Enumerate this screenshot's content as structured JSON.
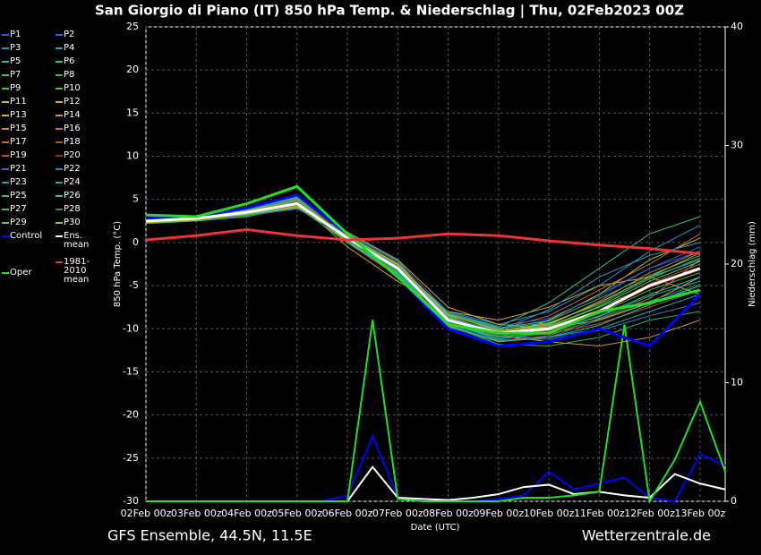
{
  "chart_data": {
    "type": "line",
    "title": "San Giorgio di Piano  (IT)  850 hPa Temp. & Niederschlag | Thu, 02Feb2023 00Z",
    "ylabel": "850 hPa Temp. (°C)",
    "y2label": "Niederschlag (mm)",
    "xlabel": "Date (UTC)",
    "footer_left": "GFS Ensemble, 44.5N, 11.5E",
    "footer_right": "Wetterzentrale.de",
    "grid": true,
    "xlim": [
      0,
      11.5
    ],
    "xticks": [
      {
        "value": 0,
        "label": "02Feb 00z"
      },
      {
        "value": 1,
        "label": "03Feb 00z"
      },
      {
        "value": 2,
        "label": "04Feb 00z"
      },
      {
        "value": 3,
        "label": "05Feb 00z"
      },
      {
        "value": 4,
        "label": "06Feb 00z"
      },
      {
        "value": 5,
        "label": "07Feb 00z"
      },
      {
        "value": 6,
        "label": "08Feb 00z"
      },
      {
        "value": 7,
        "label": "09Feb 00z"
      },
      {
        "value": 8,
        "label": "10Feb 00z"
      },
      {
        "value": 9,
        "label": "11Feb 00z"
      },
      {
        "value": 10,
        "label": "12Feb 00z"
      },
      {
        "value": 11,
        "label": "13Feb 00z"
      }
    ],
    "ylim": [
      -30,
      25
    ],
    "yticks": [
      -30,
      -25,
      -20,
      -15,
      -10,
      -5,
      0,
      5,
      10,
      15,
      20,
      25
    ],
    "y2lim": [
      0,
      40
    ],
    "y2ticks": [
      0,
      10,
      20,
      30,
      40
    ],
    "x": [
      0,
      1,
      2,
      3,
      4,
      5,
      6,
      7,
      8,
      9,
      10,
      11
    ],
    "series": [
      {
        "name": "P1",
        "color": "#3355ff",
        "values": [
          2.4,
          2.7,
          3.3,
          4.2,
          0.8,
          -2.5,
          -8.5,
          -10,
          -9,
          -6,
          -3,
          -1
        ]
      },
      {
        "name": "P2",
        "color": "#2266ee",
        "values": [
          2.6,
          2.9,
          3.6,
          4.8,
          0.2,
          -3.5,
          -9.5,
          -11,
          -11,
          -9,
          -7,
          -5
        ]
      },
      {
        "name": "P3",
        "color": "#1199dd",
        "values": [
          2.3,
          2.6,
          3.4,
          4.4,
          0.6,
          -2.8,
          -8,
          -9.5,
          -8,
          -5,
          -1,
          2
        ]
      },
      {
        "name": "P4",
        "color": "#11aacc",
        "values": [
          2.7,
          3.0,
          3.8,
          5.0,
          0.4,
          -3.2,
          -9.8,
          -11.5,
          -11,
          -10,
          -8,
          -6
        ]
      },
      {
        "name": "P5",
        "color": "#11bbbb",
        "values": [
          2.5,
          2.8,
          3.1,
          4.0,
          1.0,
          -2.2,
          -8.8,
          -10.2,
          -9.5,
          -7,
          -4,
          -2
        ]
      },
      {
        "name": "P6",
        "color": "#11cc99",
        "values": [
          2.4,
          2.9,
          3.7,
          4.6,
          0.1,
          -3.8,
          -9.3,
          -11.2,
          -10.5,
          -8.5,
          -6,
          -4
        ]
      },
      {
        "name": "P7",
        "color": "#22cc77",
        "values": [
          2.6,
          2.7,
          3.5,
          4.3,
          0.7,
          -2.6,
          -8.2,
          -9.8,
          -7,
          -3,
          1,
          3
        ]
      },
      {
        "name": "P8",
        "color": "#22bb55",
        "values": [
          2.5,
          2.8,
          3.2,
          4.9,
          0.3,
          -3.4,
          -9.6,
          -11.8,
          -12,
          -11,
          -9,
          -8
        ]
      },
      {
        "name": "P9",
        "color": "#33cc44",
        "values": [
          2.8,
          3.1,
          3.9,
          5.2,
          0.9,
          -2.9,
          -8.6,
          -10.4,
          -9.8,
          -7.5,
          -5,
          -3
        ]
      },
      {
        "name": "P10",
        "color": "#44cc22",
        "values": [
          2.2,
          2.5,
          3.0,
          4.1,
          0.5,
          -3.0,
          -9.1,
          -10.6,
          -10.2,
          -8.2,
          -5.5,
          -3.5
        ]
      },
      {
        "name": "P11",
        "color": "#aacc22",
        "values": [
          2.6,
          2.9,
          3.4,
          4.5,
          0.2,
          -3.6,
          -9.4,
          -11.0,
          -9.0,
          -6.0,
          -2.0,
          0.5
        ]
      },
      {
        "name": "P12",
        "color": "#ccaa22",
        "values": [
          2.5,
          2.7,
          3.6,
          4.7,
          -0.5,
          -4.5,
          -8.0,
          -9.0,
          -7.5,
          -5.0,
          -4.0,
          -6.0
        ]
      },
      {
        "name": "P13",
        "color": "#ddaa33",
        "values": [
          2.4,
          2.8,
          3.3,
          4.0,
          1.2,
          -2.0,
          -7.5,
          -9.5,
          -10.0,
          -9.0,
          -7.0,
          -4.0
        ]
      },
      {
        "name": "P14",
        "color": "#cc9933",
        "values": [
          2.7,
          3.0,
          3.5,
          4.4,
          0.4,
          -3.1,
          -9.0,
          -10.8,
          -11.5,
          -12.0,
          -11.0,
          -9.0
        ]
      },
      {
        "name": "P15",
        "color": "#cc8844",
        "values": [
          2.3,
          2.6,
          3.8,
          5.1,
          0.6,
          -2.7,
          -8.7,
          -10.3,
          -9.6,
          -6.8,
          -3.5,
          -1.0
        ]
      },
      {
        "name": "P16",
        "color": "#bb7733",
        "values": [
          2.6,
          2.9,
          3.2,
          4.2,
          0.0,
          -3.9,
          -9.7,
          -11.4,
          -10.8,
          -8.8,
          -6.5,
          -2.0
        ]
      },
      {
        "name": "P17",
        "color": "#cc6633",
        "values": [
          2.5,
          2.8,
          3.5,
          4.6,
          0.8,
          -2.4,
          -8.4,
          -10.1,
          -8.5,
          -5.5,
          -2.5,
          1.0
        ]
      },
      {
        "name": "P18",
        "color": "#bb5522",
        "values": [
          2.4,
          2.7,
          3.7,
          4.8,
          0.3,
          -3.3,
          -9.2,
          -10.9,
          -10.6,
          -9.4,
          -7.5,
          -5.5
        ]
      },
      {
        "name": "P19",
        "color": "#cc4433",
        "values": [
          2.8,
          3.0,
          3.4,
          4.3,
          0.7,
          -2.8,
          -8.9,
          -10.5,
          -9.9,
          -7.8,
          -4.8,
          -2.5
        ]
      },
      {
        "name": "P20",
        "color": "#aa2222",
        "values": [
          2.5,
          2.9,
          3.6,
          4.5,
          0.5,
          -3.0,
          -9.0,
          -10.7,
          -10.3,
          -8.0,
          -5.2,
          -3.2
        ]
      },
      {
        "name": "P21",
        "color": "#3366cc",
        "values": [
          2.3,
          2.6,
          3.1,
          3.9,
          1.1,
          -2.1,
          -8.1,
          -9.7,
          -8.8,
          -6.2,
          -3.0,
          -0.5
        ]
      },
      {
        "name": "P22",
        "color": "#2288cc",
        "values": [
          2.7,
          3.1,
          3.9,
          5.0,
          0.2,
          -3.7,
          -9.5,
          -11.3,
          -11.2,
          -10.2,
          -8.5,
          -7.0
        ]
      },
      {
        "name": "P23",
        "color": "#3399bb",
        "values": [
          2.6,
          2.8,
          3.3,
          4.4,
          0.6,
          -2.9,
          -8.8,
          -10.2,
          -7.8,
          -4.0,
          -1.5,
          0.0
        ]
      },
      {
        "name": "P24",
        "color": "#22aaaa",
        "values": [
          2.4,
          2.7,
          3.5,
          4.7,
          0.4,
          -3.2,
          -9.3,
          -11.0,
          -10.4,
          -8.6,
          -6.2,
          -4.5
        ]
      },
      {
        "name": "P25",
        "color": "#22bb99",
        "values": [
          2.5,
          2.9,
          3.8,
          5.3,
          0.9,
          -2.6,
          -8.5,
          -10.0,
          -9.3,
          -7.2,
          -4.2,
          -1.8
        ]
      },
      {
        "name": "P26",
        "color": "#22cc88",
        "values": [
          2.6,
          2.8,
          3.2,
          4.1,
          0.1,
          -3.5,
          -9.6,
          -11.5,
          -11.0,
          -9.6,
          -7.2,
          -5.0
        ]
      },
      {
        "name": "P27",
        "color": "#33bb66",
        "values": [
          2.4,
          2.7,
          3.6,
          4.6,
          0.7,
          -2.7,
          -8.3,
          -9.9,
          -9.1,
          -6.5,
          -3.8,
          -1.5
        ]
      },
      {
        "name": "P28",
        "color": "#229944",
        "values": [
          2.7,
          3.0,
          3.4,
          4.5,
          0.3,
          -3.4,
          -9.1,
          -10.8,
          -10.6,
          -8.9,
          -6.8,
          -4.8
        ]
      },
      {
        "name": "P29",
        "color": "#66cc33",
        "values": [
          2.5,
          2.8,
          3.7,
          4.9,
          0.5,
          -3.0,
          -8.9,
          -10.4,
          -9.7,
          -7.4,
          -4.5,
          -2.2
        ]
      },
      {
        "name": "P30",
        "color": "#bbbb22",
        "values": [
          2.3,
          2.6,
          3.3,
          4.2,
          0.8,
          -2.5,
          -8.4,
          -10.2,
          -9.4,
          -7.0,
          -4.0,
          -1.2
        ]
      },
      {
        "name": "Control",
        "color": "#0000ff",
        "width": 3,
        "values": [
          2.8,
          3,
          4,
          5.5,
          1,
          -4,
          -10,
          -12,
          -11.5,
          -10,
          -12,
          -6
        ]
      },
      {
        "name": "Ens. mean",
        "color": "#ffffff",
        "width": 3,
        "values": [
          2.5,
          2.8,
          3.5,
          4.5,
          0.5,
          -3,
          -9,
          -10.5,
          -10,
          -8,
          -5,
          -3
        ]
      },
      {
        "name": "Oper",
        "color": "#22dd22",
        "width": 3,
        "values": [
          3.2,
          3,
          4.5,
          6.5,
          1,
          -4,
          -9.5,
          -10.5,
          -10.5,
          -8,
          -7,
          -5.5
        ]
      },
      {
        "name": "1981-2010 mean",
        "color": "#ee3333",
        "width": 3,
        "values": [
          0.3,
          0.8,
          1.5,
          0.8,
          0.3,
          0.5,
          1,
          0.8,
          0.2,
          -0.3,
          -0.7,
          -1.3
        ]
      }
    ],
    "precip": {
      "x": [
        0,
        0.5,
        1,
        1.5,
        2,
        2.5,
        3,
        3.5,
        4,
        4.5,
        5,
        5.5,
        6,
        6.5,
        7,
        7.5,
        8,
        8.5,
        9,
        9.5,
        10,
        10.5,
        11,
        11.5
      ],
      "series": [
        {
          "color": "#0000ff",
          "values": [
            0,
            0,
            0,
            0,
            0,
            0,
            0,
            0,
            0.5,
            5.5,
            0.3,
            0,
            0,
            0,
            0.2,
            0.5,
            2.5,
            1,
            1.5,
            2,
            0.3,
            0,
            4,
            3
          ]
        },
        {
          "color": "#ffffff",
          "values": [
            0,
            0,
            0,
            0,
            0,
            0,
            0,
            0,
            0,
            2.9,
            0.3,
            0.2,
            0.1,
            0.3,
            0.6,
            1.2,
            1.4,
            0.6,
            0.8,
            0.5,
            0.3,
            2.3,
            1.5,
            1.0
          ]
        },
        {
          "color": "#22dd22",
          "values": [
            0,
            0,
            0,
            0,
            0,
            0,
            0,
            0,
            0,
            15.3,
            0.2,
            0,
            0,
            0,
            0,
            0.3,
            0.3,
            0.5,
            0.8,
            14.9,
            0,
            3.5,
            8.4,
            2.5
          ]
        }
      ]
    }
  }
}
